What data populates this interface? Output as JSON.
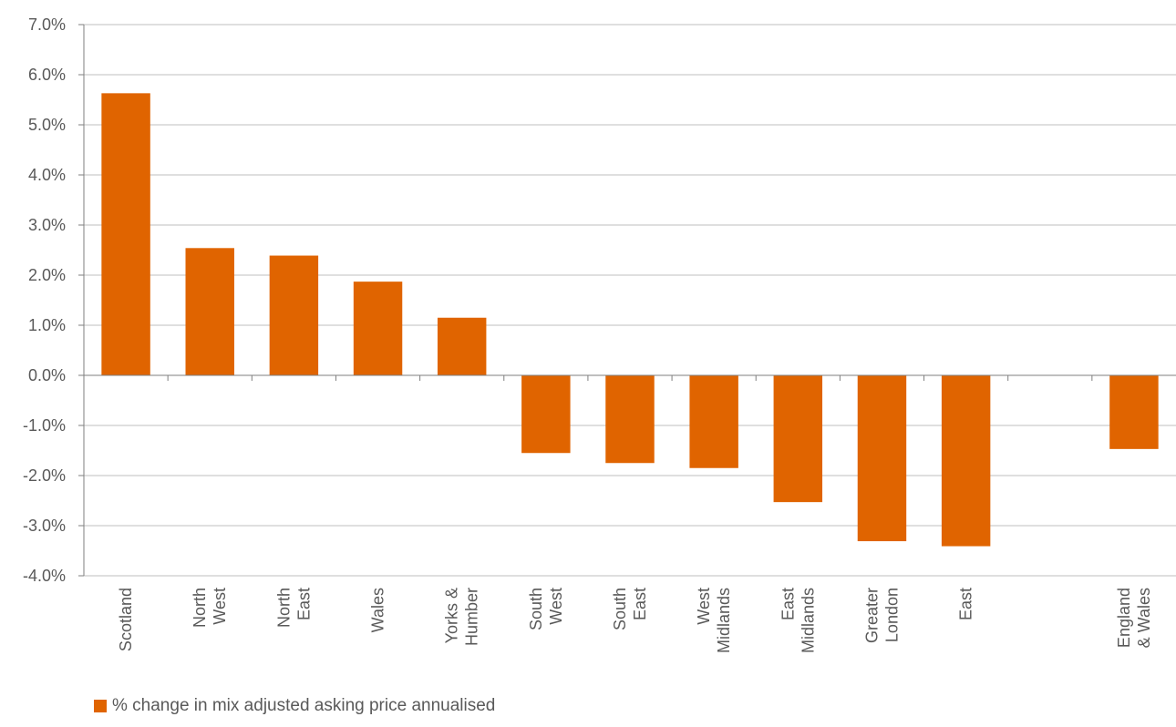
{
  "colors": {
    "bar": "#E06400",
    "grid": "#BFBFBF",
    "axis": "#7F7F7F",
    "text": "#595959"
  },
  "chart_data": {
    "type": "bar",
    "categories": [
      [
        "Scotland"
      ],
      [
        "North",
        "West"
      ],
      [
        "North",
        "East"
      ],
      [
        "Wales"
      ],
      [
        "Yorks &",
        "Humber"
      ],
      [
        "South",
        "West"
      ],
      [
        "South",
        "East"
      ],
      [
        "West",
        "Midlands"
      ],
      [
        "East",
        "Midlands"
      ],
      [
        "Greater",
        "London"
      ],
      [
        "East"
      ],
      [],
      [
        "England",
        "& Wales"
      ]
    ],
    "series": [
      {
        "name": "% change in mix adjusted asking price annualised",
        "values": [
          5.63,
          2.54,
          2.39,
          1.87,
          1.15,
          -1.55,
          -1.75,
          -1.85,
          -2.53,
          -3.31,
          -3.41,
          null,
          -1.47
        ]
      }
    ],
    "ylim": [
      -4.0,
      7.0
    ],
    "yticks": [
      "7.0%",
      "6.0%",
      "5.0%",
      "4.0%",
      "3.0%",
      "2.0%",
      "1.0%",
      "0.0%",
      "-1.0%",
      "-2.0%",
      "-3.0%",
      "-4.0%"
    ],
    "ytick_values": [
      7,
      6,
      5,
      4,
      3,
      2,
      1,
      0,
      -1,
      -2,
      -3,
      -4
    ],
    "grid": true,
    "legend_position": "bottom-left",
    "title": "",
    "xlabel": "",
    "ylabel": ""
  },
  "legend": {
    "label": "% change in mix adjusted asking price annualised"
  }
}
